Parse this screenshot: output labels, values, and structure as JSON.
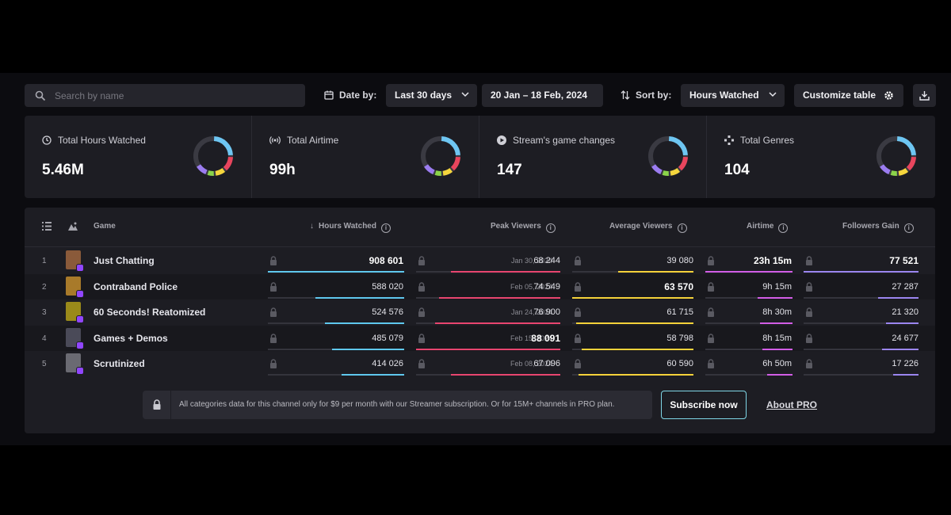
{
  "toolbar": {
    "search_placeholder": "Search by name",
    "date_by_label": "Date by:",
    "date_range_option": "Last 30 days",
    "date_range_value": "20 Jan – 18 Feb, 2024",
    "sort_by_label": "Sort by:",
    "sort_option": "Hours Watched",
    "customize_label": "Customize table"
  },
  "stats": [
    {
      "title": "Total Hours Watched",
      "value": "5.46M",
      "icon": "clock-icon"
    },
    {
      "title": "Total Airtime",
      "value": "99h",
      "icon": "broadcast-icon"
    },
    {
      "title": "Stream's game changes",
      "value": "147",
      "icon": "play-circle-icon"
    },
    {
      "title": "Total Genres",
      "value": "104",
      "icon": "genres-icon"
    }
  ],
  "donut_colors": [
    "#6ec6f2",
    "#e8455d",
    "#f5d63d",
    "#8bd44a",
    "#9b7cf0"
  ],
  "table": {
    "headers": {
      "game": "Game",
      "hours": "Hours Watched",
      "peak": "Peak Viewers",
      "avg": "Average Viewers",
      "airtime": "Airtime",
      "followers": "Followers Gain"
    },
    "rows": [
      {
        "rank": "1",
        "game": "Just Chatting",
        "hours": "908 601",
        "peak_date": "Jan 30, 2024",
        "peak": "68 244",
        "avg": "39 080",
        "airtime": "23h 15m",
        "followers": "77 521",
        "hours_frac": 1.0,
        "peak_frac": 0.76,
        "avg_frac": 0.62,
        "airtime_frac": 1.0,
        "followers_frac": 1.0
      },
      {
        "rank": "2",
        "game": "Contraband Police",
        "hours": "588 020",
        "peak_date": "Feb 05, 2024",
        "peak": "74 549",
        "avg": "63 570",
        "airtime": "9h 15m",
        "followers": "27 287",
        "hours_frac": 0.65,
        "peak_frac": 0.84,
        "avg_frac": 1.0,
        "airtime_frac": 0.4,
        "followers_frac": 0.35
      },
      {
        "rank": "3",
        "game": "60 Seconds! Reatomized",
        "hours": "524 576",
        "peak_date": "Jan 24, 2024",
        "peak": "76 900",
        "avg": "61 715",
        "airtime": "8h 30m",
        "followers": "21 320",
        "hours_frac": 0.58,
        "peak_frac": 0.87,
        "avg_frac": 0.97,
        "airtime_frac": 0.37,
        "followers_frac": 0.28
      },
      {
        "rank": "4",
        "game": "Games + Demos",
        "hours": "485 079",
        "peak_date": "Feb 15, 2024",
        "peak": "88 091",
        "avg": "58 798",
        "airtime": "8h 15m",
        "followers": "24 677",
        "hours_frac": 0.53,
        "peak_frac": 1.0,
        "avg_frac": 0.92,
        "airtime_frac": 0.35,
        "followers_frac": 0.32
      },
      {
        "rank": "5",
        "game": "Scrutinized",
        "hours": "414 026",
        "peak_date": "Feb 08, 2024",
        "peak": "67 096",
        "avg": "60 590",
        "airtime": "6h 50m",
        "followers": "17 226",
        "hours_frac": 0.46,
        "peak_frac": 0.76,
        "avg_frac": 0.95,
        "airtime_frac": 0.29,
        "followers_frac": 0.22
      }
    ]
  },
  "promo": {
    "text": "All categories data for this channel only for $9 per month with our Streamer subscription. Or for 15M+ channels in PRO plan.",
    "subscribe_label": "Subscribe now",
    "about_label": "About PRO"
  }
}
